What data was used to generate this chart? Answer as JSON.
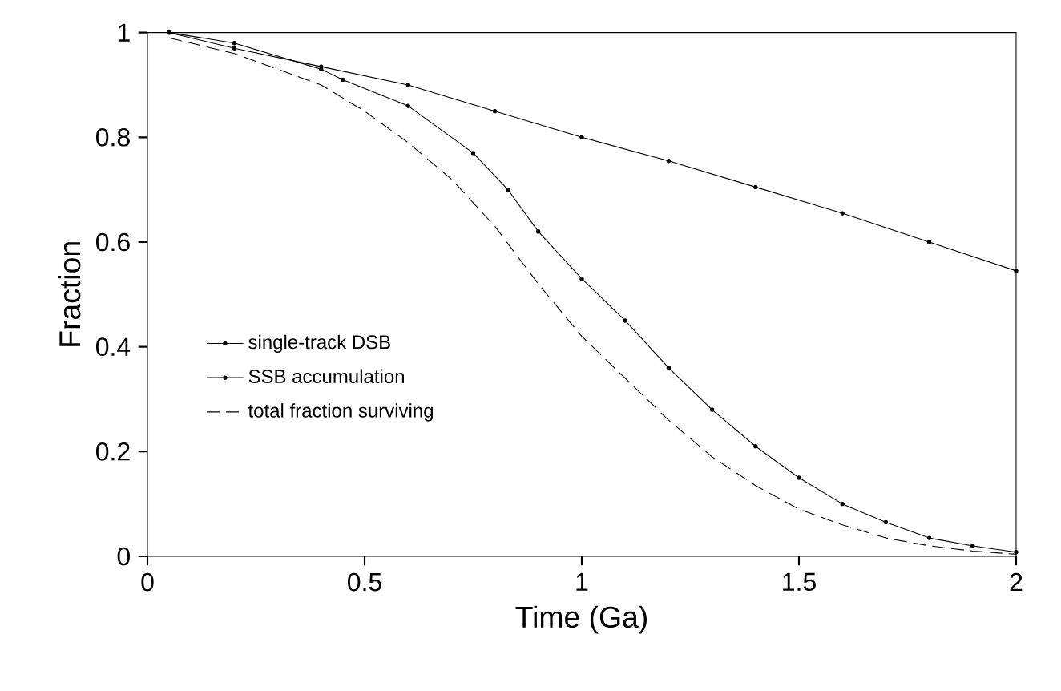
{
  "chart_data": {
    "type": "line",
    "xlabel": "Time (Ga)",
    "ylabel": "Fraction",
    "xlim": [
      0,
      2
    ],
    "ylim": [
      0,
      1
    ],
    "xticks": [
      0,
      0.5,
      1,
      1.5,
      2
    ],
    "yticks": [
      0,
      0.2,
      0.4,
      0.6,
      0.8,
      1
    ],
    "grid": false,
    "legend": "left",
    "series": [
      {
        "name": "single-track DSB",
        "color": "#000000",
        "marker": "circle",
        "line_style": "solid",
        "x": [
          0.05,
          0.2,
          0.4,
          0.6,
          0.8,
          1.0,
          1.2,
          1.4,
          1.6,
          1.8,
          2.0
        ],
        "values": [
          1,
          0.97,
          0.935,
          0.9,
          0.85,
          0.8,
          0.755,
          0.705,
          0.655,
          0.6,
          0.545
        ]
      },
      {
        "name": "SSB accumulation",
        "color": "#000000",
        "marker": "circle",
        "line_style": "solid",
        "x": [
          0.05,
          0.2,
          0.4,
          0.45,
          0.6,
          0.75,
          0.83,
          0.9,
          1.0,
          1.1,
          1.2,
          1.3,
          1.4,
          1.5,
          1.6,
          1.7,
          1.8,
          1.9,
          2.0
        ],
        "values": [
          1,
          0.98,
          0.93,
          0.91,
          0.86,
          0.77,
          0.7,
          0.62,
          0.53,
          0.45,
          0.36,
          0.28,
          0.21,
          0.15,
          0.1,
          0.065,
          0.035,
          0.02,
          0.008
        ]
      },
      {
        "name": "total fraction surviving",
        "color": "#000000",
        "marker": "none",
        "line_style": "dashed",
        "x": [
          0.05,
          0.2,
          0.4,
          0.5,
          0.6,
          0.7,
          0.8,
          0.9,
          1.0,
          1.1,
          1.2,
          1.3,
          1.4,
          1.5,
          1.6,
          1.7,
          1.8,
          1.9,
          2.0
        ],
        "values": [
          0.99,
          0.96,
          0.9,
          0.85,
          0.79,
          0.72,
          0.63,
          0.52,
          0.42,
          0.34,
          0.26,
          0.19,
          0.135,
          0.09,
          0.06,
          0.035,
          0.02,
          0.01,
          0.004
        ]
      }
    ]
  }
}
